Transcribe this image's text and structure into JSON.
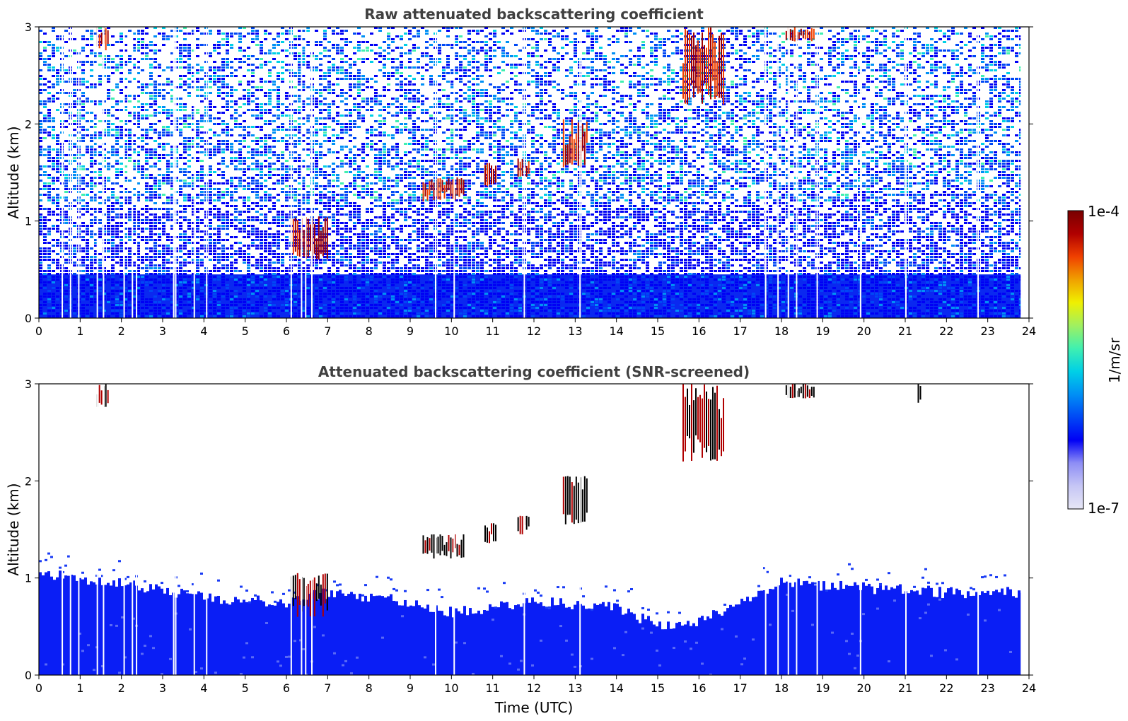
{
  "chart_data": [
    {
      "type": "heatmap",
      "title": "Raw attenuated backscattering coefficient",
      "xlabel": "",
      "ylabel": "Altitude (km)",
      "xlim": [
        0,
        24
      ],
      "ylim": [
        0,
        3
      ],
      "xticks": [
        "0",
        "1",
        "2",
        "3",
        "4",
        "5",
        "6",
        "7",
        "8",
        "9",
        "10",
        "11",
        "12",
        "13",
        "14",
        "15",
        "16",
        "17",
        "18",
        "19",
        "20",
        "21",
        "22",
        "23",
        "24"
      ],
      "yticks": [
        "0",
        "1",
        "2",
        "3"
      ],
      "layers": {
        "dense_background_top_km": 0.45,
        "speckle_to_km": 3.0
      },
      "features": [
        {
          "label": "cloud",
          "t": [
            1.4,
            1.7
          ],
          "alt": [
            2.75,
            3.0
          ]
        },
        {
          "label": "cloud",
          "t": [
            6.1,
            7.0
          ],
          "alt": [
            0.6,
            1.05
          ]
        },
        {
          "label": "cloud",
          "t": [
            9.3,
            10.3
          ],
          "alt": [
            1.2,
            1.45
          ]
        },
        {
          "label": "cloud",
          "t": [
            10.8,
            11.1
          ],
          "alt": [
            1.35,
            1.6
          ]
        },
        {
          "label": "cloud",
          "t": [
            11.6,
            11.9
          ],
          "alt": [
            1.45,
            1.65
          ]
        },
        {
          "label": "cloud",
          "t": [
            12.7,
            13.3
          ],
          "alt": [
            1.55,
            2.05
          ]
        },
        {
          "label": "cloud",
          "t": [
            15.6,
            16.6
          ],
          "alt": [
            2.2,
            3.0
          ]
        },
        {
          "label": "cloud",
          "t": [
            18.1,
            18.8
          ],
          "alt": [
            2.85,
            3.0
          ]
        }
      ]
    },
    {
      "type": "heatmap",
      "title": "Attenuated backscattering coefficient (SNR-screened)",
      "xlabel": "Time (UTC)",
      "ylabel": "Altitude (km)",
      "xlim": [
        0,
        24
      ],
      "ylim": [
        0,
        3
      ],
      "xticks": [
        "0",
        "1",
        "2",
        "3",
        "4",
        "5",
        "6",
        "7",
        "8",
        "9",
        "10",
        "11",
        "12",
        "13",
        "14",
        "15",
        "16",
        "17",
        "18",
        "19",
        "20",
        "21",
        "22",
        "23",
        "24"
      ],
      "yticks": [
        "0",
        "1",
        "2",
        "3"
      ],
      "boundary_layer_top_km": [
        {
          "t": 0,
          "alt": 1.05
        },
        {
          "t": 2,
          "alt": 0.95
        },
        {
          "t": 4,
          "alt": 0.8
        },
        {
          "t": 6,
          "alt": 0.75
        },
        {
          "t": 7,
          "alt": 0.85
        },
        {
          "t": 9,
          "alt": 0.75
        },
        {
          "t": 10,
          "alt": 0.65
        },
        {
          "t": 12,
          "alt": 0.75
        },
        {
          "t": 14,
          "alt": 0.7
        },
        {
          "t": 15,
          "alt": 0.5
        },
        {
          "t": 16,
          "alt": 0.55
        },
        {
          "t": 17,
          "alt": 0.75
        },
        {
          "t": 18,
          "alt": 0.95
        },
        {
          "t": 20,
          "alt": 0.9
        },
        {
          "t": 22,
          "alt": 0.85
        },
        {
          "t": 23.8,
          "alt": 0.85
        }
      ],
      "features": [
        {
          "label": "cloud",
          "t": [
            1.4,
            1.7
          ],
          "alt": [
            2.75,
            3.0
          ]
        },
        {
          "label": "cloud",
          "t": [
            6.1,
            7.0
          ],
          "alt": [
            0.6,
            1.05
          ]
        },
        {
          "label": "cloud",
          "t": [
            9.3,
            10.3
          ],
          "alt": [
            1.2,
            1.45
          ]
        },
        {
          "label": "cloud",
          "t": [
            10.8,
            11.1
          ],
          "alt": [
            1.35,
            1.6
          ]
        },
        {
          "label": "cloud",
          "t": [
            11.6,
            11.9
          ],
          "alt": [
            1.45,
            1.65
          ]
        },
        {
          "label": "cloud",
          "t": [
            12.7,
            13.3
          ],
          "alt": [
            1.55,
            2.05
          ]
        },
        {
          "label": "cloud",
          "t": [
            15.6,
            16.6
          ],
          "alt": [
            2.2,
            3.0
          ]
        },
        {
          "label": "cloud",
          "t": [
            18.1,
            18.8
          ],
          "alt": [
            2.85,
            3.0
          ]
        },
        {
          "label": "cloud",
          "t": [
            21.3,
            21.4
          ],
          "alt": [
            2.8,
            3.0
          ]
        }
      ]
    }
  ],
  "colorbar": {
    "label": "1/m/sr",
    "max_label": "1e-4",
    "min_label": "1e-7",
    "scale": "log",
    "colors": [
      "#e6e6f5",
      "#c6c6f5",
      "#8e8ef5",
      "#0000f5",
      "#0048f5",
      "#0090f5",
      "#00d0e6",
      "#40f0b0",
      "#a0f060",
      "#f0f000",
      "#f0a000",
      "#f04000",
      "#b00000",
      "#780000"
    ]
  },
  "data_gaps_hours": [
    0.55,
    0.75,
    0.95,
    1.4,
    1.55,
    2.05,
    2.25,
    2.35,
    3.25,
    3.3,
    3.75,
    4.05,
    6.1,
    6.35,
    6.45,
    6.6,
    9.6,
    10.05,
    11.75,
    13.1,
    17.6,
    17.9,
    18.15,
    18.35,
    18.85,
    19.9,
    21.0,
    22.75,
    23.8
  ]
}
